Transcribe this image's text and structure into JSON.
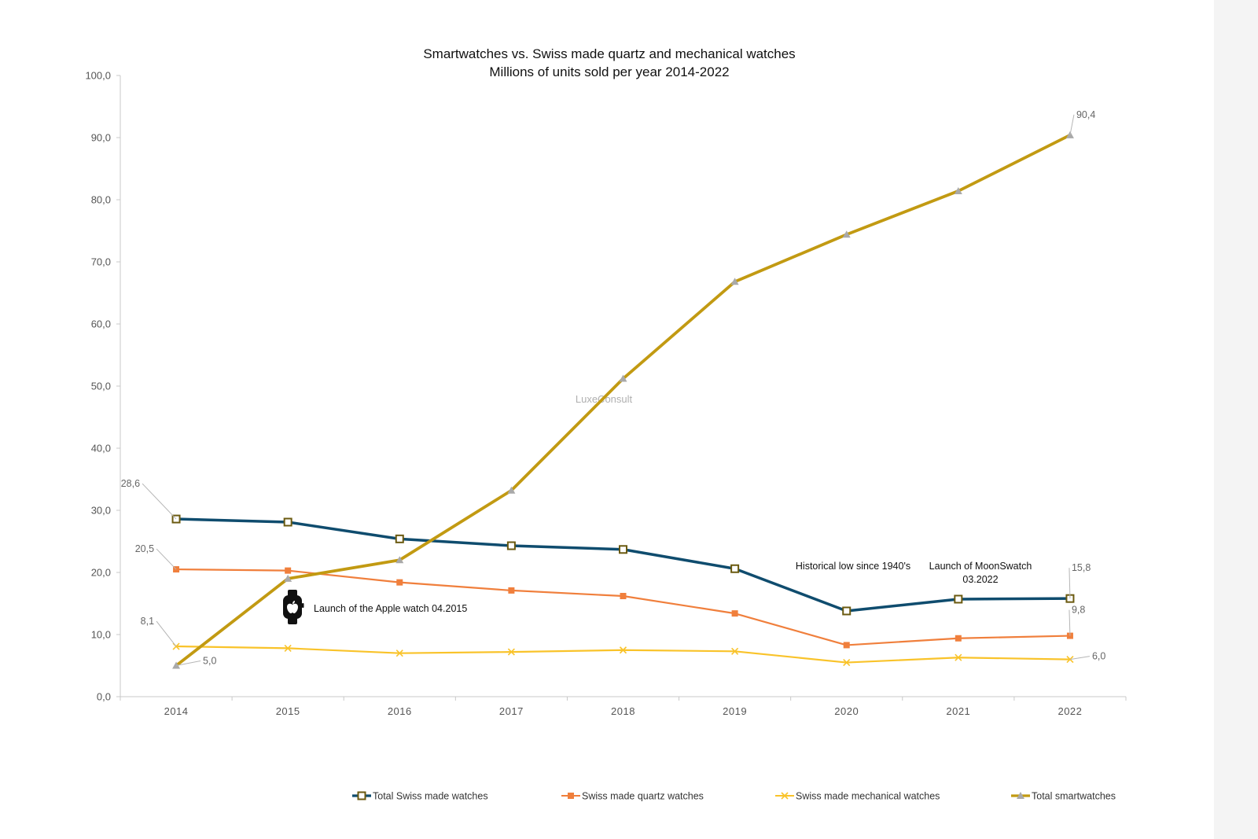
{
  "chart_data": {
    "type": "line",
    "title": "Smartwatches vs. Swiss made quartz and mechanical watches",
    "subtitle": "Millions of units sold per year 2014-2022",
    "categories": [
      "2014",
      "2015",
      "2016",
      "2017",
      "2018",
      "2019",
      "2020",
      "2021",
      "2022"
    ],
    "ylim": [
      0,
      100
    ],
    "yticks": [
      "0,0",
      "10,0",
      "20,0",
      "30,0",
      "40,0",
      "50,0",
      "60,0",
      "70,0",
      "80,0",
      "90,0",
      "100,0"
    ],
    "grid": false,
    "legend_position": "bottom",
    "series": [
      {
        "key": "total_swiss",
        "name": "Total Swiss made watches",
        "color": "#0f4c6e",
        "marker": "square-open",
        "values": [
          28.6,
          28.1,
          25.4,
          24.3,
          23.7,
          20.6,
          13.8,
          15.7,
          15.8
        ]
      },
      {
        "key": "quartz",
        "name": "Swiss made quartz watches",
        "color": "#f07f3c",
        "marker": "square",
        "values": [
          20.5,
          20.3,
          18.4,
          17.1,
          16.2,
          13.4,
          8.3,
          9.4,
          9.8
        ]
      },
      {
        "key": "mechanical",
        "name": "Swiss made mechanical watches",
        "color": "#f9c32a",
        "marker": "x",
        "values": [
          8.1,
          7.8,
          7.0,
          7.2,
          7.5,
          7.3,
          5.5,
          6.3,
          6.0
        ]
      },
      {
        "key": "smartwatches",
        "name": "Total smartwatches",
        "color": "#c29a12",
        "marker": "triangle",
        "values": [
          5.0,
          19.0,
          22.0,
          33.2,
          51.2,
          66.8,
          74.4,
          81.4,
          90.4
        ]
      }
    ],
    "data_labels": [
      {
        "series": "total_swiss",
        "index": 0,
        "text": "28,6"
      },
      {
        "series": "quartz",
        "index": 0,
        "text": "20,5"
      },
      {
        "series": "mechanical",
        "index": 0,
        "text": "8,1"
      },
      {
        "series": "smartwatches",
        "index": 0,
        "text": "5,0"
      },
      {
        "series": "smartwatches",
        "index": 8,
        "text": "90,4"
      },
      {
        "series": "total_swiss",
        "index": 8,
        "text": "15,8"
      },
      {
        "series": "quartz",
        "index": 8,
        "text": "9,8"
      },
      {
        "series": "mechanical",
        "index": 8,
        "text": "6,0"
      }
    ],
    "annotations": [
      {
        "name": "apple-watch-annotation",
        "lines": [
          "Launch of the Apple watch 04.2015"
        ],
        "icon": "apple-watch-icon"
      },
      {
        "name": "historical-low-annotation",
        "lines": [
          "Historical low since 1940's"
        ]
      },
      {
        "name": "moonswatch-annotation",
        "lines": [
          "Launch of MoonSwatch",
          "03.2022"
        ]
      }
    ],
    "watermark": "LuxeConsult"
  }
}
